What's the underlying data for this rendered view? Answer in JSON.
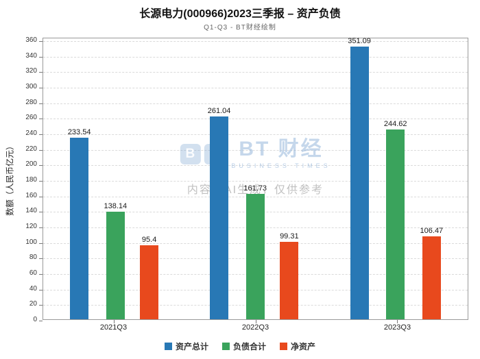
{
  "title": "长源电力(000966)2023三季报 – 资产负债",
  "subtitle": "Q1-Q3 - BT财经绘制",
  "watermark": {
    "logo_b": "B",
    "logo_t": "T",
    "brand": "BT 财经",
    "brand_sub": "BUSINESS TIMES",
    "notice": "内容由AI生成，仅供参考"
  },
  "chart_data": {
    "type": "bar",
    "title": "长源电力(000966)2023三季报 – 资产负债",
    "subtitle": "Q1-Q3 - BT财经绘制",
    "categories": [
      "2021Q3",
      "2022Q3",
      "2023Q3"
    ],
    "series": [
      {
        "name": "资产总计",
        "slug": "total-assets",
        "color": "#2878b5",
        "values": [
          233.54,
          261.04,
          351.09
        ]
      },
      {
        "name": "负债合计",
        "slug": "total-liabilities",
        "color": "#3aa35c",
        "values": [
          138.14,
          161.73,
          244.62
        ]
      },
      {
        "name": "净资产",
        "slug": "net-assets",
        "color": "#e8491d",
        "values": [
          95.4,
          99.31,
          106.47
        ]
      }
    ],
    "xlabel": "",
    "ylabel": "数额（人民币亿元）",
    "ylim": [
      0,
      360
    ],
    "ytick_step": 20,
    "grid": true,
    "grid_style": "dashed",
    "legend_position": "bottom",
    "value_labels": true
  }
}
